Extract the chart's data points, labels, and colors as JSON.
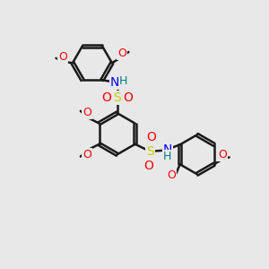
{
  "bg_color": "#e8e8e8",
  "bond_color": "#1a1a1a",
  "bond_width": 1.8,
  "atom_colors": {
    "O": "#ff0000",
    "N": "#0000ff",
    "S": "#cccc00",
    "H": "#008080"
  },
  "font_size": 9
}
